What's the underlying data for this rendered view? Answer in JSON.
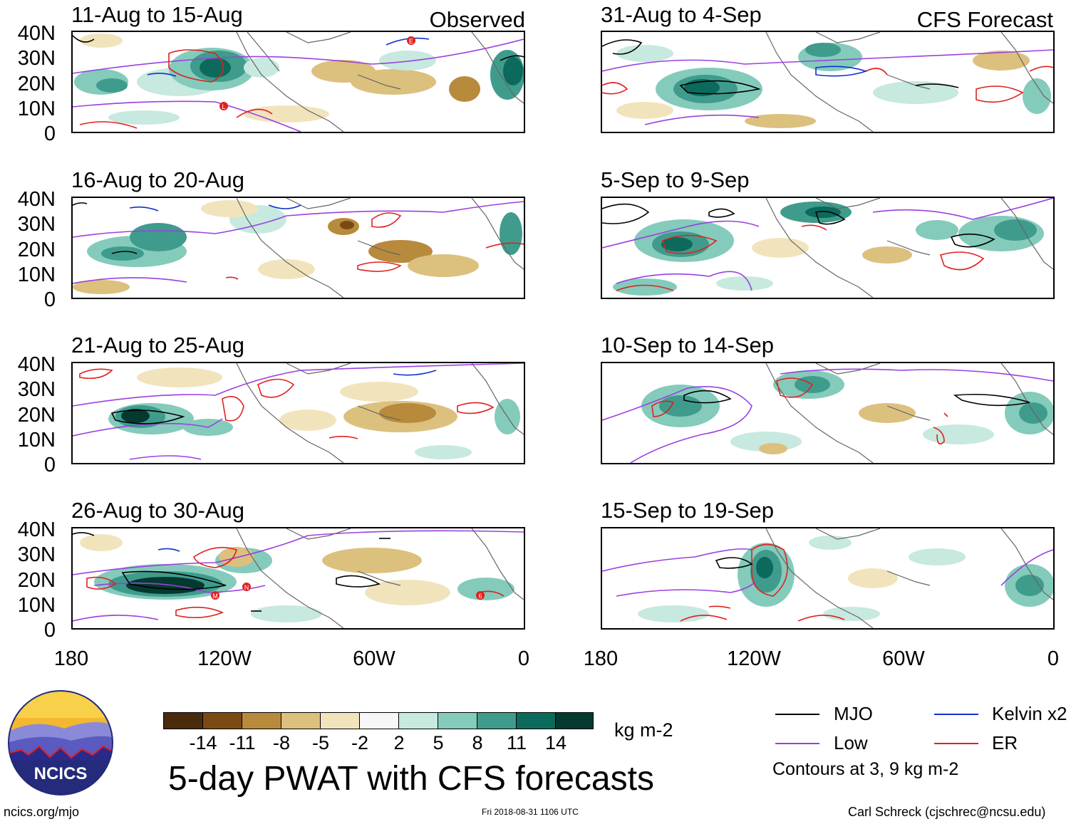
{
  "figure": {
    "title": "5-day PWAT with CFS forecasts",
    "units": "kg m-2",
    "url": "ncics.org/mjo",
    "timestamp": "Fri 2018-08-31 1106 UTC",
    "credit": "Carl Schreck (cjschrec@ncsu.edu)",
    "contour_note": "Contours at 3, 9 kg m-2",
    "logo_text": "NCICS"
  },
  "columns": {
    "left_label": "Observed",
    "right_label": "CFS Forecast"
  },
  "panels": {
    "left": [
      "11-Aug to 15-Aug",
      "16-Aug to 20-Aug",
      "21-Aug to 25-Aug",
      "26-Aug to 30-Aug"
    ],
    "right": [
      "31-Aug to 4-Sep",
      "5-Sep to 9-Sep",
      "10-Sep to 14-Sep",
      "15-Sep to 19-Sep"
    ]
  },
  "axes": {
    "lat_ticks": [
      "40N",
      "30N",
      "20N",
      "10N",
      "0"
    ],
    "lon_ticks": [
      "180",
      "120W",
      "60W",
      "0"
    ]
  },
  "colorbar": {
    "labels": [
      "-14",
      "-11",
      "-8",
      "-5",
      "-2",
      "2",
      "5",
      "8",
      "11",
      "14"
    ],
    "colors": [
      "#4a2c0c",
      "#7a4a14",
      "#b88a3c",
      "#dcc07e",
      "#f1e4bd",
      "#f7f7f7",
      "#c7e9df",
      "#84cbbb",
      "#3f9c8c",
      "#0c6a5c",
      "#04392f"
    ]
  },
  "legend": {
    "items": [
      {
        "label": "MJO",
        "color": "#000000"
      },
      {
        "label": "Kelvin x2",
        "color": "#1030d0"
      },
      {
        "label": "Low",
        "color": "#9a40e0"
      },
      {
        "label": "ER",
        "color": "#e02020"
      }
    ]
  },
  "storm_markers": {
    "p0": [
      "E",
      "L"
    ],
    "p3": [
      "M",
      "N",
      "6"
    ]
  }
}
